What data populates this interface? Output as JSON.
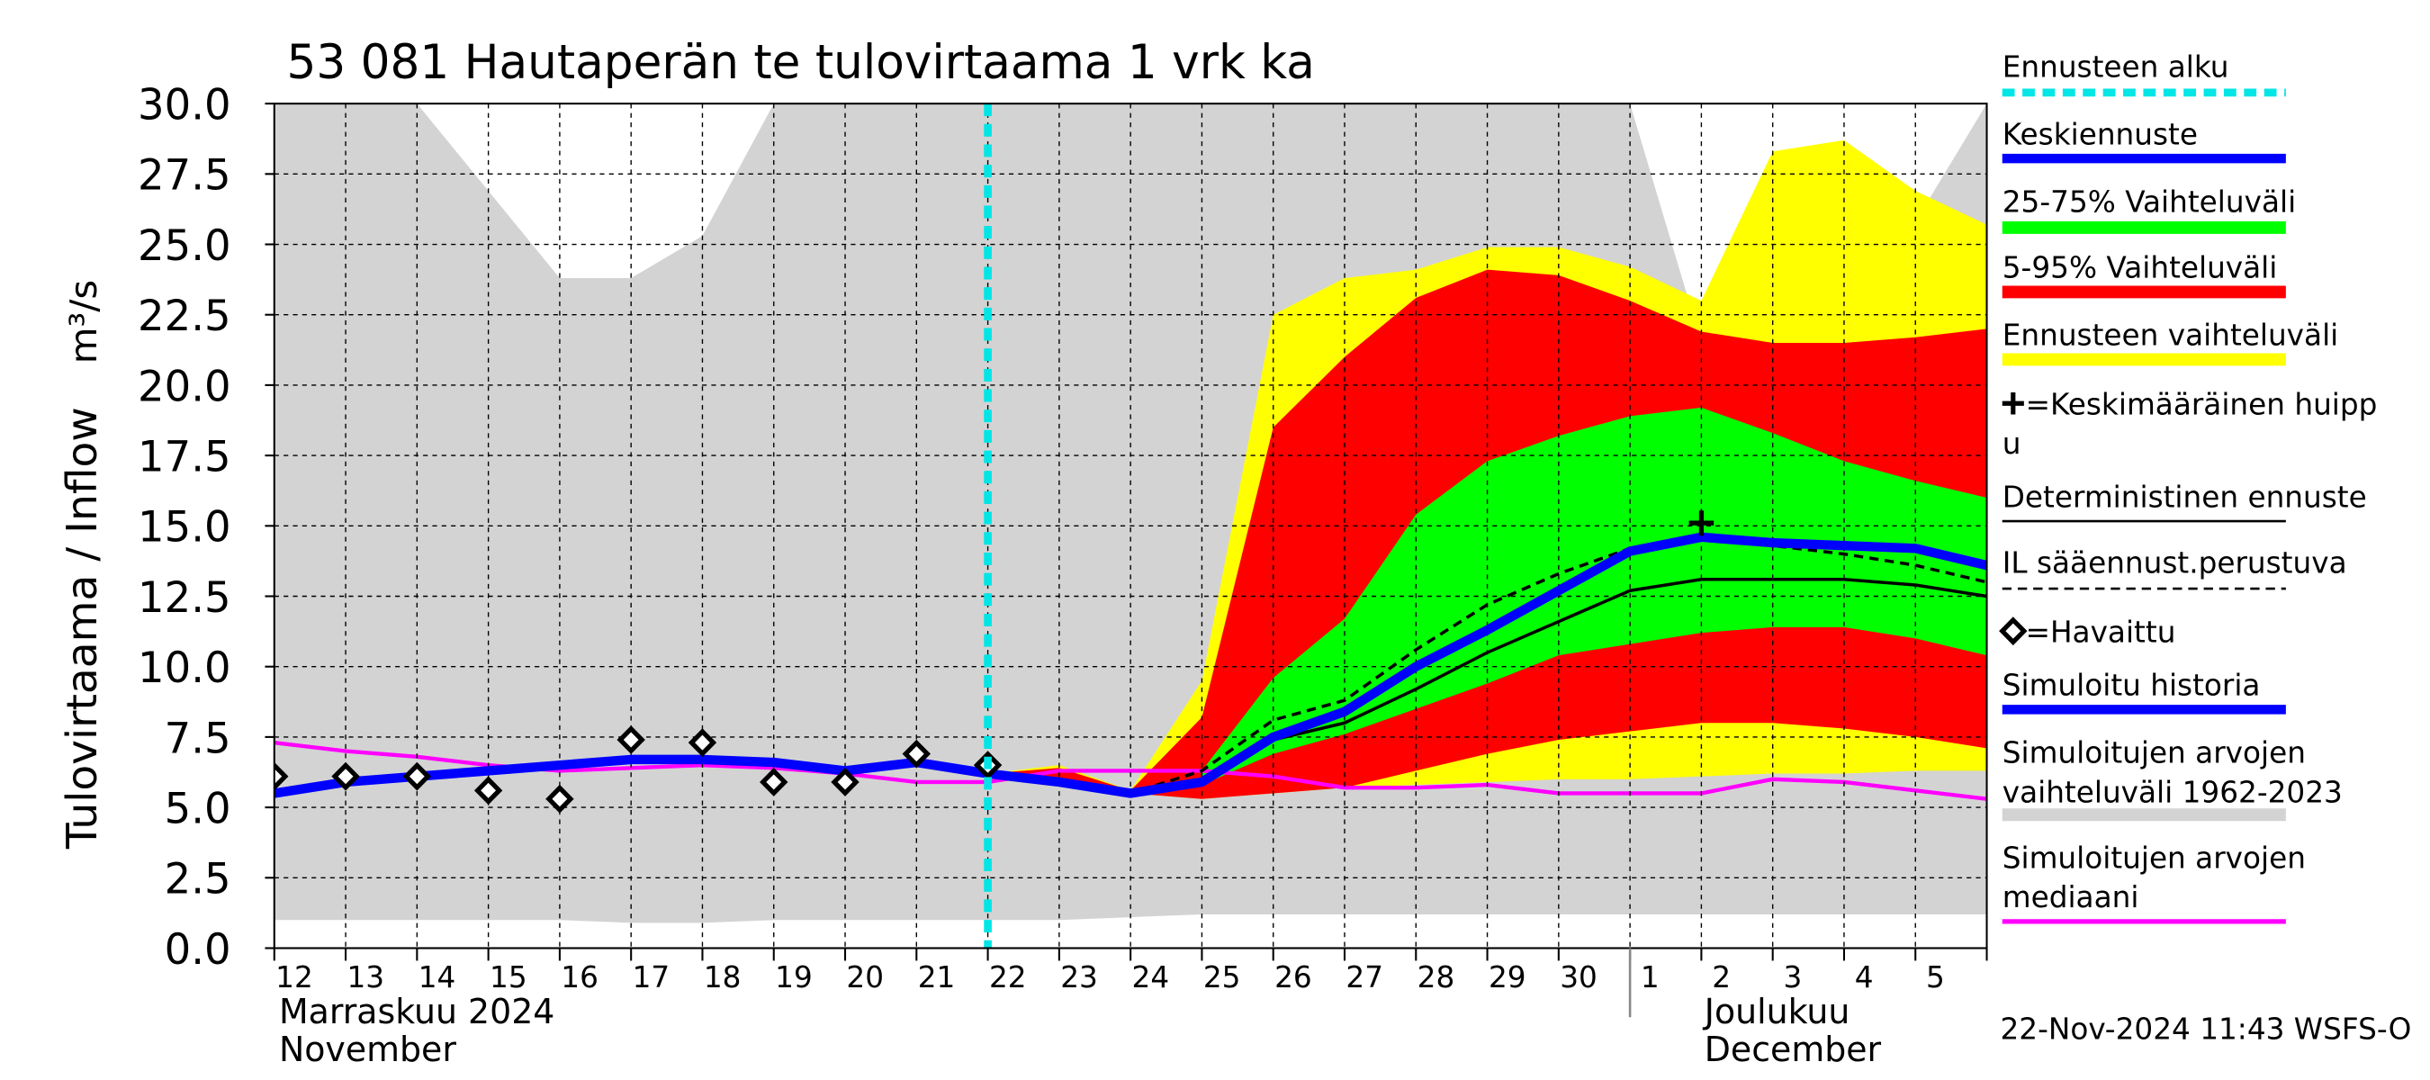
{
  "chart_data": {
    "type": "line",
    "title": "53 081 Hautaperän te tulovirtaama 1 vrk ka",
    "y_label": "Tulovirtaama / Inflow",
    "y_unit": "m³/s",
    "categories": [
      "12",
      "13",
      "14",
      "15",
      "16",
      "17",
      "18",
      "19",
      "20",
      "21",
      "22",
      "23",
      "24",
      "25",
      "26",
      "27",
      "28",
      "29",
      "30",
      "1",
      "2",
      "3",
      "4",
      "5",
      null
    ],
    "xlim": [
      0,
      24
    ],
    "ylim": [
      0,
      30
    ],
    "yticks": [
      {
        "value": 0,
        "label": "0.0"
      },
      2.5,
      {
        "value": 5,
        "label": "5.0"
      },
      7.5,
      {
        "value": 10,
        "label": "10.0"
      },
      12.5,
      {
        "value": 15,
        "label": "15.0"
      },
      17.5,
      {
        "value": 20,
        "label": "20.0"
      },
      22.5,
      {
        "value": 25,
        "label": "25.0"
      },
      27.5,
      {
        "value": 30,
        "label": "30.0"
      }
    ],
    "grid": true,
    "months": [
      [
        "Marraskuu 2024",
        "November"
      ],
      [
        "Joulukuu",
        "December"
      ]
    ],
    "month_start": [
      0,
      19
    ],
    "timestamp": "22-Nov-2024 11:43 WSFS-O",
    "series": [
      {
        "name": [
          "Ennusteen alku"
        ],
        "style": "vline",
        "color": "#00e5e5",
        "x": 10
      },
      {
        "name": [
          "Keskiennuste"
        ],
        "style": "line",
        "color": "#0000ff",
        "values": [
          null,
          null,
          null,
          null,
          null,
          null,
          null,
          null,
          null,
          null,
          6.2,
          5.9,
          5.5,
          5.9,
          7.5,
          8.4,
          10.0,
          11.3,
          12.7,
          14.1,
          14.6,
          14.4,
          14.3,
          14.2,
          13.6
        ]
      },
      {
        "name": [
          "25-75% Vaihteluväli"
        ],
        "style": "band",
        "color": "#00ff00",
        "lower": [
          null,
          null,
          null,
          null,
          null,
          null,
          null,
          null,
          null,
          null,
          null,
          null,
          null,
          5.8,
          6.9,
          7.6,
          8.5,
          9.4,
          10.4,
          10.8,
          11.2,
          11.4,
          11.4,
          11.0,
          10.4
        ],
        "upper": [
          null,
          null,
          null,
          null,
          null,
          null,
          null,
          null,
          null,
          null,
          null,
          null,
          null,
          6.3,
          9.6,
          11.7,
          15.4,
          17.3,
          18.2,
          18.9,
          19.2,
          18.3,
          17.3,
          16.6,
          16.0
        ]
      },
      {
        "name": [
          "5-95% Vaihteluväli"
        ],
        "style": "band",
        "color": "#ff0000",
        "lower": [
          null,
          null,
          null,
          null,
          null,
          null,
          null,
          null,
          null,
          null,
          6.2,
          5.8,
          5.5,
          5.3,
          5.5,
          5.7,
          6.3,
          6.9,
          7.4,
          7.7,
          8.0,
          8.0,
          7.8,
          7.5,
          7.1
        ],
        "upper": [
          null,
          null,
          null,
          null,
          null,
          null,
          null,
          null,
          null,
          null,
          6.2,
          6.4,
          5.6,
          8.2,
          18.5,
          21.0,
          23.1,
          24.1,
          23.9,
          23.0,
          21.9,
          21.5,
          21.5,
          21.7,
          22.0
        ]
      },
      {
        "name": [
          "Ennusteen vaihteluväli"
        ],
        "style": "band",
        "color": "#ffff00",
        "lower": [
          null,
          null,
          null,
          null,
          null,
          null,
          null,
          null,
          null,
          null,
          6.2,
          5.9,
          5.5,
          5.3,
          5.5,
          5.7,
          5.8,
          5.9,
          6.0,
          6.0,
          6.1,
          6.2,
          6.2,
          6.3,
          6.3
        ],
        "upper": [
          null,
          null,
          null,
          null,
          null,
          null,
          null,
          null,
          null,
          null,
          6.2,
          6.5,
          5.6,
          9.5,
          22.5,
          23.8,
          24.1,
          24.9,
          24.9,
          24.2,
          23.0,
          28.3,
          28.7,
          26.9,
          25.7
        ]
      },
      {
        "name": [
          "=Keskimääräinen huipp",
          "u"
        ],
        "style": "peak",
        "color": "#000000",
        "x": [
          20
        ],
        "values": [
          15.1
        ]
      },
      {
        "name": [
          "Deterministinen ennuste"
        ],
        "style": "line",
        "color": "#000000",
        "values": [
          null,
          null,
          null,
          null,
          null,
          null,
          null,
          null,
          null,
          null,
          6.2,
          6.0,
          5.5,
          5.9,
          7.4,
          8.0,
          9.2,
          10.5,
          11.6,
          12.7,
          13.1,
          13.1,
          13.1,
          12.9,
          12.5
        ]
      },
      {
        "name": [
          "IL sääennust.perustuva"
        ],
        "style": "dashed",
        "color": "#000000",
        "values": [
          null,
          null,
          null,
          null,
          null,
          null,
          null,
          null,
          null,
          null,
          6.2,
          6.0,
          5.5,
          6.3,
          8.1,
          8.8,
          10.6,
          12.2,
          13.3,
          14.2,
          14.5,
          14.3,
          14.0,
          13.6,
          13.0
        ]
      },
      {
        "name": [
          "=Havaittu"
        ],
        "style": "markers",
        "color": "#000000",
        "values": [
          6.1,
          6.1,
          6.1,
          5.6,
          5.3,
          7.4,
          7.3,
          5.9,
          5.9,
          6.9,
          6.5,
          null,
          null,
          null,
          null,
          null,
          null,
          null,
          null,
          null,
          null,
          null,
          null,
          null,
          null
        ]
      },
      {
        "name": [
          "Simuloitu historia"
        ],
        "style": "line",
        "color": "#0000ff",
        "values": [
          5.5,
          5.9,
          6.1,
          6.3,
          6.5,
          6.7,
          6.7,
          6.6,
          6.3,
          6.6,
          6.2,
          null,
          null,
          null,
          null,
          null,
          null,
          null,
          null,
          null,
          null,
          null,
          null,
          null,
          null
        ]
      },
      {
        "name": [
          "Simuloitujen arvojen",
          "vaihteluväli 1962-2023"
        ],
        "style": "band",
        "color": "#d3d3d3",
        "lower": [
          1.0,
          1.0,
          1.0,
          1.0,
          1.0,
          0.9,
          0.9,
          1.0,
          1.0,
          1.0,
          1.0,
          1.0,
          1.1,
          1.2,
          1.2,
          1.2,
          1.2,
          1.2,
          1.2,
          1.2,
          1.2,
          1.2,
          1.2,
          1.2,
          1.2
        ],
        "upper": [
          30,
          30,
          30,
          26.9,
          23.8,
          23.8,
          25.3,
          30,
          30,
          30,
          30,
          30,
          30,
          30,
          30,
          30,
          30,
          30,
          30,
          30,
          21.5,
          22.6,
          21.4,
          25.8,
          30
        ]
      },
      {
        "name": [
          "Simuloitujen arvojen",
          "mediaani"
        ],
        "style": "line",
        "color": "#ff00ff",
        "values": [
          7.3,
          7.0,
          6.8,
          6.5,
          6.3,
          6.4,
          6.5,
          6.4,
          6.2,
          5.9,
          5.9,
          6.3,
          6.3,
          6.3,
          6.1,
          5.7,
          5.7,
          5.8,
          5.5,
          5.5,
          5.5,
          6.0,
          5.9,
          5.6,
          5.3
        ]
      }
    ]
  }
}
